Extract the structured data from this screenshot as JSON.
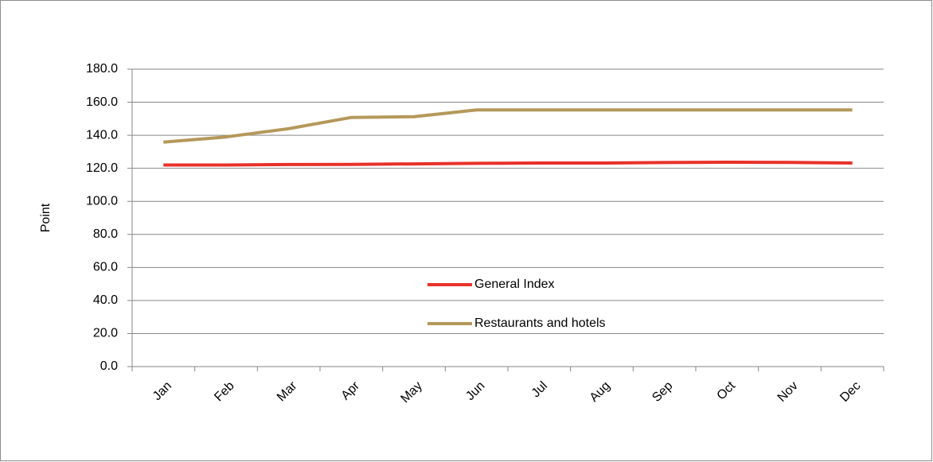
{
  "chart_data": {
    "type": "line",
    "y_label": "Point",
    "categories": [
      "Jan",
      "Feb",
      "Mar",
      "Apr",
      "May",
      "Jun",
      "Jul",
      "Aug",
      "Sep",
      "Oct",
      "Nov",
      "Dec"
    ],
    "series": [
      {
        "name": "General Index",
        "color": "#e8312a",
        "values": [
          122.0,
          122.0,
          122.3,
          122.4,
          122.7,
          123.0,
          123.2,
          123.2,
          123.5,
          123.7,
          123.6,
          123.2
        ]
      },
      {
        "name": "Restaurants and hotels",
        "color": "#b5985a",
        "values": [
          135.8,
          139.0,
          144.0,
          150.8,
          151.2,
          155.3,
          155.3,
          155.3,
          155.3,
          155.3,
          155.3,
          155.3
        ]
      }
    ],
    "ylim": [
      0,
      180
    ],
    "yticks": [
      {
        "value": 0,
        "label": "0.0"
      },
      {
        "value": 20,
        "label": "20.0"
      },
      {
        "value": 40,
        "label": "40.0"
      },
      {
        "value": 60,
        "label": "60.0"
      },
      {
        "value": 80,
        "label": "80.0"
      },
      {
        "value": 100,
        "label": "100.0"
      },
      {
        "value": 120,
        "label": "120.0"
      },
      {
        "value": 140,
        "label": "140.0"
      },
      {
        "value": 160,
        "label": "160.0"
      },
      {
        "value": 180,
        "label": "180.0"
      }
    ],
    "grid": true,
    "legend_position": "center"
  }
}
